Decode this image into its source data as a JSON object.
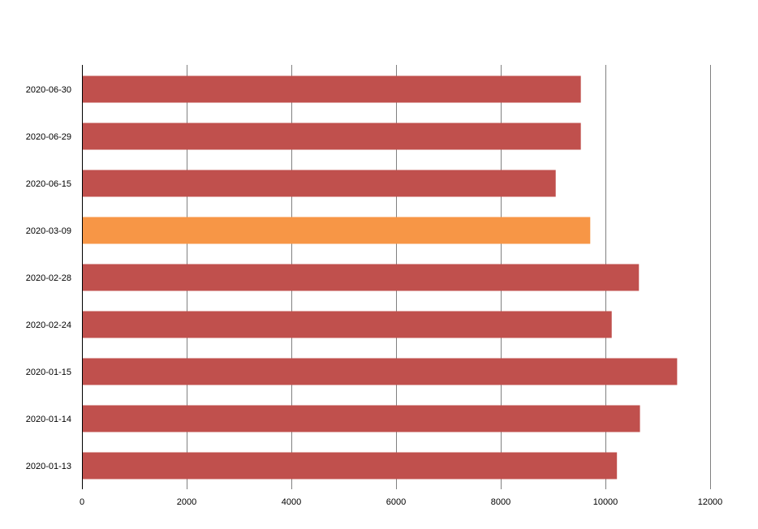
{
  "chart_data": {
    "type": "bar",
    "orientation": "horizontal",
    "categories": [
      "2020-06-30",
      "2020-06-29",
      "2020-06-15",
      "2020-03-09",
      "2020-02-28",
      "2020-02-24",
      "2020-01-15",
      "2020-01-14",
      "2020-01-13"
    ],
    "values": [
      9530,
      9530,
      9050,
      9710,
      10640,
      10120,
      11370,
      10660,
      10220
    ],
    "highlight_index": 3,
    "colors": {
      "bar": "#c0504d",
      "highlight": "#f79646",
      "grid": "#808080",
      "axis": "#000000"
    },
    "title": "",
    "xlabel": "",
    "ylabel": "",
    "xlim": [
      0,
      12000
    ],
    "xticks": [
      0,
      2000,
      4000,
      6000,
      8000,
      10000,
      12000
    ],
    "xtick_labels": [
      "0",
      "2000",
      "4000",
      "6000",
      "8000",
      "10000",
      "12000"
    ],
    "grid": true,
    "legend": "none"
  }
}
